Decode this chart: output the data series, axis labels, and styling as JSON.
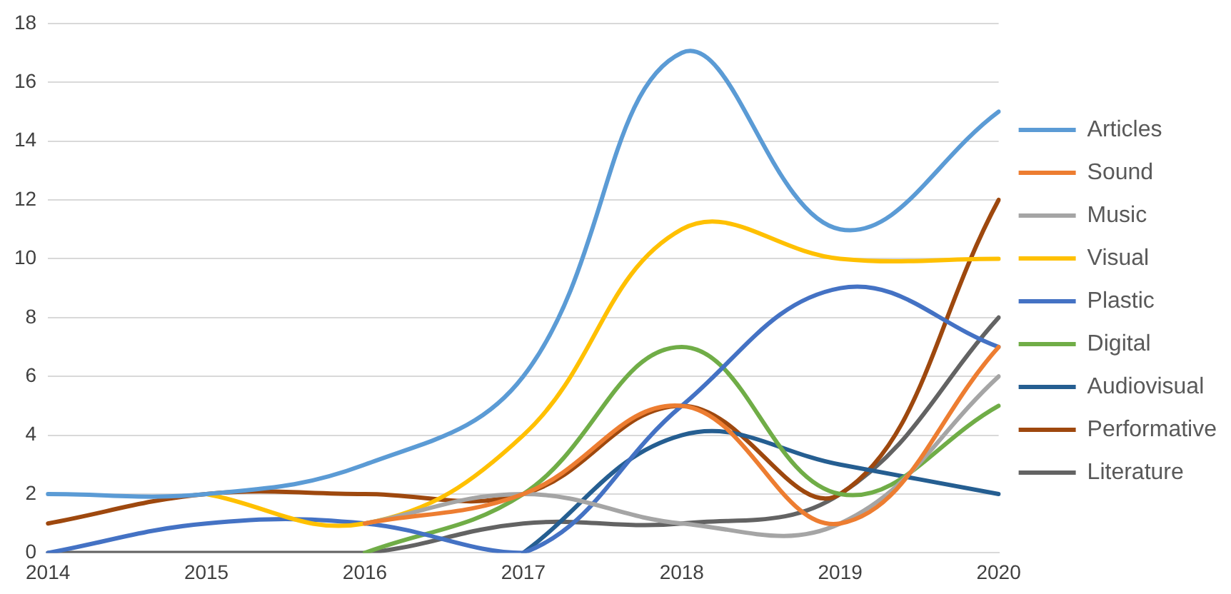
{
  "chart_data": {
    "type": "line",
    "categories": [
      "2014",
      "2015",
      "2016",
      "2017",
      "2018",
      "2019",
      "2020"
    ],
    "ylim": [
      0,
      18
    ],
    "yticks": [
      0,
      2,
      4,
      6,
      8,
      10,
      12,
      14,
      16,
      18
    ],
    "grid": "y",
    "legend": "right",
    "marker": "none",
    "line_style": "solid",
    "series": [
      {
        "name": "Articles",
        "color": "#5b9bd5",
        "values": [
          2,
          2,
          3,
          6,
          17,
          11,
          15
        ]
      },
      {
        "name": "Sound",
        "color": "#ed7d31",
        "values": [
          null,
          null,
          1,
          2,
          5,
          1,
          7
        ]
      },
      {
        "name": "Music",
        "color": "#a5a5a5",
        "values": [
          null,
          null,
          1,
          2,
          1,
          1,
          6
        ]
      },
      {
        "name": "Visual",
        "color": "#ffc000",
        "values": [
          null,
          2,
          1,
          4,
          11,
          10,
          10
        ]
      },
      {
        "name": "Plastic",
        "color": "#4472c4",
        "values": [
          0,
          1,
          1,
          0,
          5,
          9,
          7
        ]
      },
      {
        "name": "Digital",
        "color": "#70ad47",
        "values": [
          null,
          null,
          0,
          2,
          7,
          2,
          5
        ]
      },
      {
        "name": "Audiovisual",
        "color": "#255e91",
        "values": [
          null,
          null,
          null,
          0,
          4,
          3,
          2
        ]
      },
      {
        "name": "Performative",
        "color": "#9e480e",
        "values": [
          1,
          2,
          2,
          2,
          5,
          2,
          12
        ]
      },
      {
        "name": "Literature",
        "color": "#636363",
        "values": [
          0,
          0,
          0,
          1,
          1,
          2,
          8
        ]
      }
    ]
  }
}
